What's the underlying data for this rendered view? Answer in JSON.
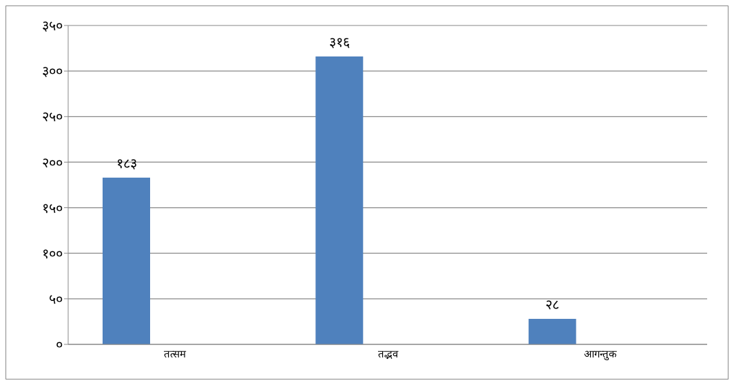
{
  "chart_data": {
    "type": "bar",
    "categories": [
      "तत्सम",
      "तद्भव",
      "आगन्तुक"
    ],
    "values": [
      183,
      316,
      28
    ],
    "color": "#4f81bd",
    "value_labels": [
      "१८३",
      "३१६",
      "२८"
    ],
    "ylim": [
      0,
      350
    ],
    "yticks": [
      {
        "value": 0,
        "label": "०"
      },
      {
        "value": 50,
        "label": "५०"
      },
      {
        "value": 100,
        "label": "१००"
      },
      {
        "value": 150,
        "label": "१५०"
      },
      {
        "value": 200,
        "label": "२००"
      },
      {
        "value": 250,
        "label": "२५०"
      },
      {
        "value": 300,
        "label": "३००"
      },
      {
        "value": 350,
        "label": "३५०"
      }
    ],
    "grid": "y",
    "legend": false
  }
}
